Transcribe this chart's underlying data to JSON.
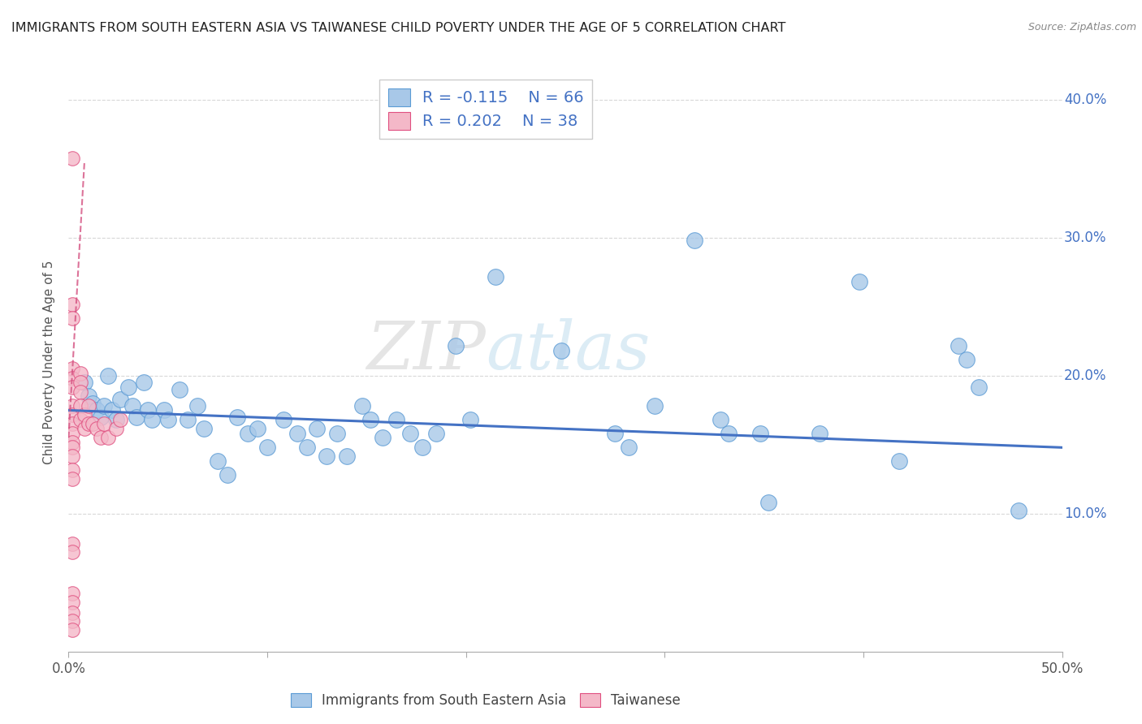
{
  "title": "IMMIGRANTS FROM SOUTH EASTERN ASIA VS TAIWANESE CHILD POVERTY UNDER THE AGE OF 5 CORRELATION CHART",
  "source": "Source: ZipAtlas.com",
  "ylabel": "Child Poverty Under the Age of 5",
  "xlim": [
    0.0,
    0.5
  ],
  "ylim": [
    0.0,
    0.42
  ],
  "color_blue": "#a8c8e8",
  "color_blue_edge": "#5b9bd5",
  "color_pink": "#f4b8c8",
  "color_pink_edge": "#e05080",
  "color_line_blue": "#4472c4",
  "color_line_pink": "#d45080",
  "watermark": "ZIPatlas",
  "blue_scatter": [
    [
      0.008,
      0.195
    ],
    [
      0.01,
      0.185
    ],
    [
      0.012,
      0.18
    ],
    [
      0.014,
      0.175
    ],
    [
      0.016,
      0.17
    ],
    [
      0.018,
      0.178
    ],
    [
      0.02,
      0.2
    ],
    [
      0.022,
      0.175
    ],
    [
      0.024,
      0.168
    ],
    [
      0.026,
      0.183
    ],
    [
      0.03,
      0.192
    ],
    [
      0.032,
      0.178
    ],
    [
      0.034,
      0.17
    ],
    [
      0.038,
      0.195
    ],
    [
      0.04,
      0.175
    ],
    [
      0.042,
      0.168
    ],
    [
      0.048,
      0.175
    ],
    [
      0.05,
      0.168
    ],
    [
      0.056,
      0.19
    ],
    [
      0.06,
      0.168
    ],
    [
      0.065,
      0.178
    ],
    [
      0.068,
      0.162
    ],
    [
      0.075,
      0.138
    ],
    [
      0.08,
      0.128
    ],
    [
      0.085,
      0.17
    ],
    [
      0.09,
      0.158
    ],
    [
      0.095,
      0.162
    ],
    [
      0.1,
      0.148
    ],
    [
      0.108,
      0.168
    ],
    [
      0.115,
      0.158
    ],
    [
      0.12,
      0.148
    ],
    [
      0.125,
      0.162
    ],
    [
      0.13,
      0.142
    ],
    [
      0.135,
      0.158
    ],
    [
      0.14,
      0.142
    ],
    [
      0.148,
      0.178
    ],
    [
      0.152,
      0.168
    ],
    [
      0.158,
      0.155
    ],
    [
      0.165,
      0.168
    ],
    [
      0.172,
      0.158
    ],
    [
      0.178,
      0.148
    ],
    [
      0.185,
      0.158
    ],
    [
      0.195,
      0.222
    ],
    [
      0.202,
      0.168
    ],
    [
      0.215,
      0.272
    ],
    [
      0.248,
      0.218
    ],
    [
      0.275,
      0.158
    ],
    [
      0.282,
      0.148
    ],
    [
      0.295,
      0.178
    ],
    [
      0.315,
      0.298
    ],
    [
      0.328,
      0.168
    ],
    [
      0.332,
      0.158
    ],
    [
      0.348,
      0.158
    ],
    [
      0.352,
      0.108
    ],
    [
      0.378,
      0.158
    ],
    [
      0.398,
      0.268
    ],
    [
      0.418,
      0.138
    ],
    [
      0.448,
      0.222
    ],
    [
      0.452,
      0.212
    ],
    [
      0.458,
      0.192
    ],
    [
      0.478,
      0.102
    ]
  ],
  "pink_scatter": [
    [
      0.002,
      0.358
    ],
    [
      0.002,
      0.252
    ],
    [
      0.002,
      0.242
    ],
    [
      0.002,
      0.205
    ],
    [
      0.002,
      0.198
    ],
    [
      0.002,
      0.192
    ],
    [
      0.002,
      0.178
    ],
    [
      0.002,
      0.172
    ],
    [
      0.002,
      0.165
    ],
    [
      0.002,
      0.158
    ],
    [
      0.002,
      0.152
    ],
    [
      0.002,
      0.148
    ],
    [
      0.002,
      0.142
    ],
    [
      0.002,
      0.132
    ],
    [
      0.002,
      0.125
    ],
    [
      0.002,
      0.078
    ],
    [
      0.002,
      0.072
    ],
    [
      0.002,
      0.042
    ],
    [
      0.002,
      0.036
    ],
    [
      0.002,
      0.028
    ],
    [
      0.002,
      0.022
    ],
    [
      0.002,
      0.016
    ],
    [
      0.006,
      0.202
    ],
    [
      0.006,
      0.195
    ],
    [
      0.006,
      0.188
    ],
    [
      0.006,
      0.178
    ],
    [
      0.006,
      0.168
    ],
    [
      0.008,
      0.172
    ],
    [
      0.008,
      0.162
    ],
    [
      0.01,
      0.178
    ],
    [
      0.01,
      0.165
    ],
    [
      0.012,
      0.165
    ],
    [
      0.014,
      0.162
    ],
    [
      0.016,
      0.155
    ],
    [
      0.018,
      0.165
    ],
    [
      0.02,
      0.155
    ],
    [
      0.024,
      0.162
    ],
    [
      0.026,
      0.168
    ]
  ],
  "blue_trendline": [
    [
      0.0,
      0.175
    ],
    [
      0.5,
      0.148
    ]
  ],
  "pink_trendline": [
    [
      0.0,
      0.155
    ],
    [
      0.008,
      0.355
    ]
  ],
  "background_color": "#ffffff",
  "grid_color": "#d8d8d8"
}
